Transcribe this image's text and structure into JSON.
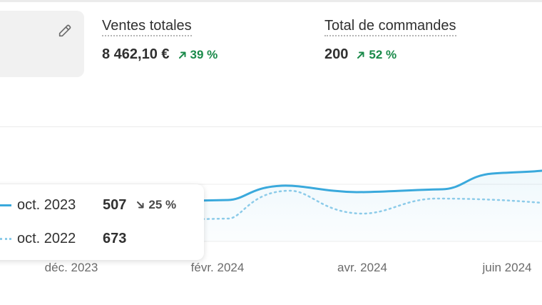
{
  "metrics": [
    {
      "title": "Ventes totales",
      "value": "8 462,10 €",
      "change": "39 %"
    },
    {
      "title": "Total de commandes",
      "value": "200",
      "change": "52 %"
    }
  ],
  "chart_data": {
    "type": "line",
    "x_tick_labels": [
      "déc. 2023",
      "févr. 2024",
      "avr. 2024",
      "juin 2024"
    ],
    "series": [
      {
        "name": "oct. 2023",
        "style": "solid",
        "color": "#3aa9dc"
      },
      {
        "name": "oct. 2022",
        "style": "dotted",
        "color": "#8ccbe9"
      }
    ],
    "grid": true
  },
  "tooltip": {
    "rows": [
      {
        "period": "oct. 2023",
        "value": "507",
        "change": "25 %",
        "direction": "down"
      },
      {
        "period": "oct. 2022",
        "value": "673"
      }
    ]
  },
  "colors": {
    "positive": "#1a8a4a",
    "series_primary": "#3aa9dc",
    "series_secondary": "#8ccbe9"
  },
  "icons": {
    "edit": "pencil-icon",
    "increase": "arrow-up-right-icon",
    "decrease": "arrow-down-right-icon"
  }
}
